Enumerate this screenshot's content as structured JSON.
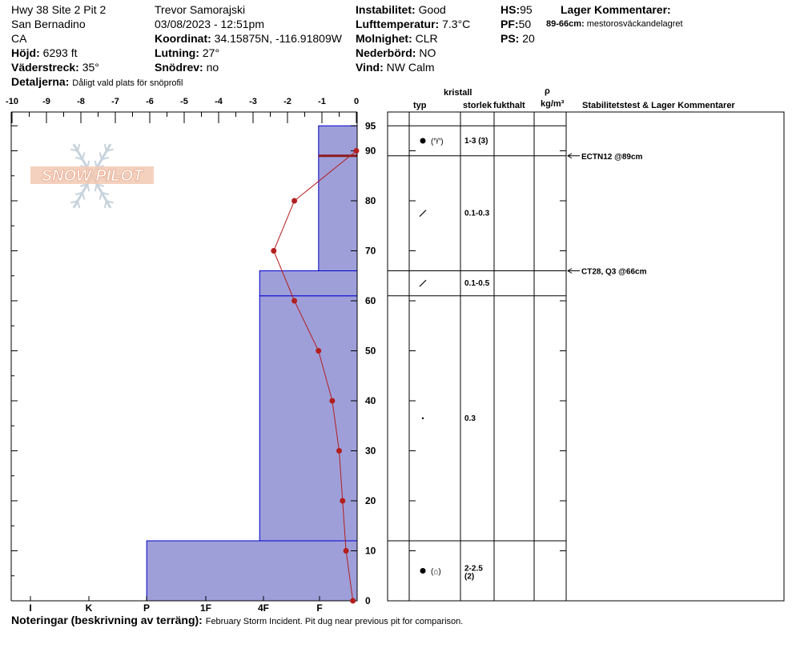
{
  "header": {
    "site": "Hwy 38 Site 2 Pit 2",
    "region": "San Bernadino",
    "state": "CA",
    "elevation_label": "Höjd:",
    "elevation": "6293 ft",
    "aspect_label": "Väderstreck:",
    "aspect": "35°",
    "details_label": "Detaljerna:",
    "details": "Dåligt vald plats för snöprofil",
    "observer": "Trevor Samorajski",
    "datetime": "03/08/2023 - 12:51pm",
    "coord_label": "Koordinat:",
    "coord": "34.15875N, -116.91809W",
    "slope_label": "Lutning:",
    "slope": "27°",
    "drift_label": "Snödrev:",
    "drift": "no",
    "stability_label": "Instabilitet:",
    "stability": "Good",
    "airtemp_label": "Lufttemperatur:",
    "airtemp": "7.3°C",
    "sky_label": "Molnighet:",
    "sky": "CLR",
    "precip_label": "Nederbörd:",
    "precip": "NO",
    "wind_label": "Vind:",
    "wind": "NW Calm",
    "hs_label": "HS:",
    "hs": "95",
    "pf_label": "PF:",
    "pf": "50",
    "ps_label": "PS:",
    "ps": "20",
    "layer_comments_label": "Lager Kommentarer:",
    "layer_comment_range": "89-66cm:",
    "layer_comment_text": "mestorosväckandelagret"
  },
  "logo": {
    "text": "SNOW PILOT"
  },
  "columns": {
    "crystal": "kristall",
    "type": "typ",
    "size": "storlek",
    "moisture": "fukthalt",
    "rho": "ρ",
    "density_unit": "kg/m³",
    "stability_tests": "Stabilitetstest & Lager Kommentarer"
  },
  "notes": {
    "label": "Noteringar (beskrivning av terräng):",
    "text": "February Storm Incident. Pit dug near previous pit for comparison."
  },
  "chart_data": {
    "type": "snow-profile",
    "temp_axis": {
      "ticks": [
        -10,
        -9,
        -8,
        -7,
        -6,
        -5,
        -4,
        -3,
        -2,
        -1,
        0
      ],
      "range": [
        -10,
        0
      ]
    },
    "height_axis": {
      "ticks": [
        0,
        10,
        20,
        30,
        40,
        50,
        60,
        70,
        80,
        90,
        95
      ],
      "range": [
        0,
        95
      ]
    },
    "hardness_axis": {
      "labels": [
        "I",
        "K",
        "P",
        "1F",
        "4F",
        "F"
      ]
    },
    "hardness_layers": [
      {
        "bottom": 0,
        "top": 12,
        "hardness_index": 6
      },
      {
        "bottom": 12,
        "top": 61,
        "hardness_index": 2.78
      },
      {
        "bottom": 61,
        "top": 66,
        "hardness_index": 2.78
      },
      {
        "bottom": 66,
        "top": 89,
        "hardness_index": 1.1
      },
      {
        "bottom": 89,
        "top": 95,
        "hardness_index": 1.1
      }
    ],
    "temperature_profile": [
      {
        "height": 0,
        "temp": -0.1
      },
      {
        "height": 10,
        "temp": -0.3
      },
      {
        "height": 20,
        "temp": -0.4
      },
      {
        "height": 30,
        "temp": -0.5
      },
      {
        "height": 40,
        "temp": -0.7
      },
      {
        "height": 50,
        "temp": -1.1
      },
      {
        "height": 60,
        "temp": -1.8
      },
      {
        "height": 70,
        "temp": -2.4
      },
      {
        "height": 80,
        "temp": -1.8
      },
      {
        "height": 90,
        "temp": 0
      }
    ],
    "layer_boundaries": [
      0,
      12,
      61,
      66,
      89,
      95
    ],
    "layers_detail": [
      {
        "center": 92,
        "type": "precip",
        "secondary": "(♈)",
        "size": "1-3 (3)"
      },
      {
        "center": 77.5,
        "type": "slash",
        "secondary": "",
        "size": "0.1-0.3"
      },
      {
        "center": 63.5,
        "type": "slash",
        "secondary": "",
        "size": "0.1-0.5"
      },
      {
        "center": 36.5,
        "type": "dot",
        "secondary": "",
        "size": "0.3"
      },
      {
        "center": 6,
        "type": "precip",
        "secondary": "(⌂)",
        "size": "2-2.5\n(2)"
      }
    ],
    "stability_tests": [
      {
        "height": 89,
        "label": "ECTN12 @89cm"
      },
      {
        "height": 66,
        "label": "CT28, Q3 @66cm"
      }
    ]
  }
}
